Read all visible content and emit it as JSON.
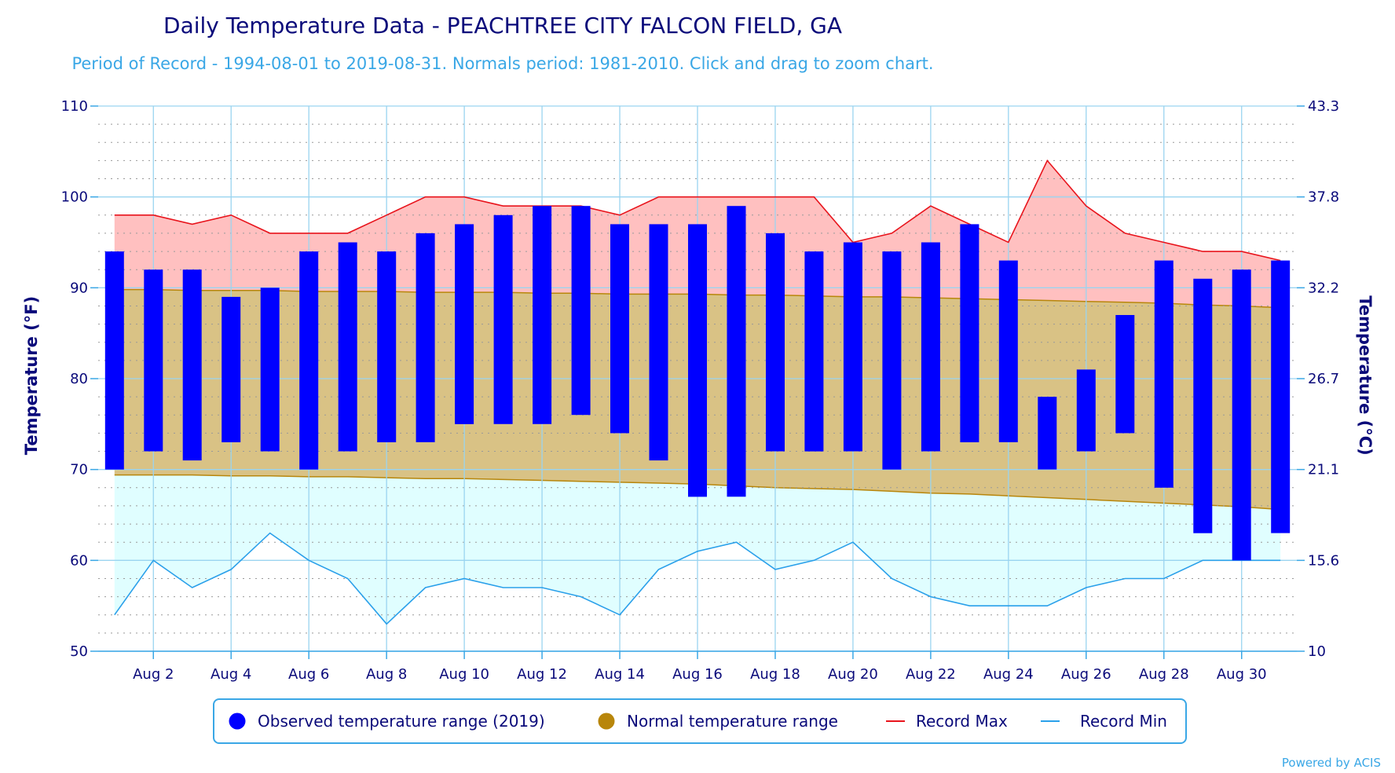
{
  "chart_data": {
    "type": "bar",
    "title": "Daily Temperature Data - PEACHTREE CITY FALCON FIELD, GA",
    "subtitle": "Period of Record - 1994-08-01 to 2019-08-31. Normals period: 1981-2010. Click and drag to zoom chart.",
    "ylabel_left": "Temperature (°F)",
    "ylabel_right": "Temperature (°C)",
    "ylim": [
      50,
      110
    ],
    "y_ticks_f": [
      "110",
      "100",
      "90",
      "80",
      "70",
      "60",
      "50"
    ],
    "y_ticks_c": [
      "43.3",
      "37.8",
      "32.2",
      "26.7",
      "21.1",
      "15.6",
      "10"
    ],
    "x_tick_labels": [
      "Aug 2",
      "Aug 4",
      "Aug 6",
      "Aug 8",
      "Aug 10",
      "Aug 12",
      "Aug 14",
      "Aug 16",
      "Aug 18",
      "Aug 20",
      "Aug 22",
      "Aug 24",
      "Aug 26",
      "Aug 28",
      "Aug 30"
    ],
    "days": [
      1,
      2,
      3,
      4,
      5,
      6,
      7,
      8,
      9,
      10,
      11,
      12,
      13,
      14,
      15,
      16,
      17,
      18,
      19,
      20,
      21,
      22,
      23,
      24,
      25,
      26,
      27,
      28,
      29,
      30,
      31
    ],
    "series": [
      {
        "name": "Observed temperature range (2019)",
        "color": "#0000ff",
        "low": [
          70,
          72,
          71,
          73,
          72,
          70,
          72,
          73,
          73,
          75,
          75,
          75,
          76,
          74,
          71,
          67,
          67,
          72,
          72,
          72,
          70,
          72,
          73,
          73,
          70,
          72,
          74,
          68,
          63,
          60,
          63
        ],
        "high": [
          94,
          92,
          92,
          89,
          90,
          94,
          95,
          94,
          96,
          97,
          98,
          99,
          99,
          97,
          97,
          97,
          99,
          96,
          94,
          95,
          94,
          95,
          97,
          93,
          78,
          81,
          87,
          93,
          91,
          92,
          93
        ]
      },
      {
        "name": "Normal temperature range",
        "color": "#b8860b",
        "low": [
          69.4,
          69.4,
          69.4,
          69.3,
          69.3,
          69.2,
          69.2,
          69.1,
          69.0,
          69.0,
          68.9,
          68.8,
          68.7,
          68.6,
          68.5,
          68.4,
          68.2,
          68.0,
          67.9,
          67.8,
          67.6,
          67.4,
          67.3,
          67.1,
          66.9,
          66.7,
          66.5,
          66.3,
          66.1,
          65.9,
          65.6
        ],
        "high": [
          89.8,
          89.8,
          89.7,
          89.7,
          89.7,
          89.6,
          89.6,
          89.6,
          89.5,
          89.5,
          89.5,
          89.4,
          89.4,
          89.3,
          89.3,
          89.3,
          89.2,
          89.2,
          89.1,
          89.0,
          89.0,
          88.9,
          88.8,
          88.7,
          88.6,
          88.5,
          88.4,
          88.3,
          88.1,
          88.0,
          87.8
        ]
      },
      {
        "name": "Record Max",
        "color": "#e8141c",
        "values": [
          98,
          98,
          97,
          98,
          96,
          96,
          96,
          98,
          100,
          100,
          99,
          99,
          99,
          98,
          100,
          100,
          100,
          100,
          100,
          95,
          96,
          99,
          97,
          95,
          104,
          99,
          96,
          95,
          94,
          94,
          93
        ]
      },
      {
        "name": "Record Min",
        "color": "#2aa0ea",
        "values": [
          54,
          60,
          57,
          59,
          63,
          60,
          58,
          53,
          57,
          58,
          57,
          57,
          56,
          54,
          59,
          61,
          62,
          59,
          60,
          62,
          58,
          56,
          55,
          55,
          55,
          57,
          58,
          58,
          60,
          60,
          60
        ]
      }
    ],
    "grid": true,
    "legend_position": "bottom-center"
  },
  "credit": "Powered by ACIS"
}
